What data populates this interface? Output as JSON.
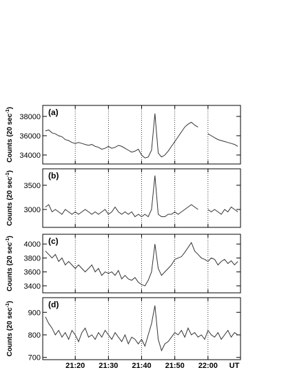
{
  "chart_data": [
    {
      "type": "line",
      "panel_label": "(a)",
      "ylabel": [
        "Counts (20 sec",
        "-1",
        ")"
      ],
      "x": [
        1271,
        1272,
        1273,
        1274,
        1275,
        1276,
        1277,
        1278,
        1279,
        1280,
        1281,
        1282,
        1283,
        1284,
        1285,
        1286,
        1287,
        1288,
        1289,
        1290,
        1291,
        1292,
        1293,
        1294,
        1295,
        1296,
        1297,
        1298,
        1299,
        1300,
        1301,
        1302,
        1303,
        1304,
        1305,
        1306,
        1307,
        1308,
        1309,
        1310,
        1311,
        1312,
        1313,
        1314,
        1315,
        1316,
        1317,
        1318,
        1319,
        1320,
        1321,
        1322,
        1323,
        1324,
        1325,
        1326,
        1327,
        1328,
        1329
      ],
      "values": [
        36500,
        36600,
        36300,
        36200,
        36000,
        35900,
        35600,
        35500,
        35300,
        35200,
        35300,
        35200,
        35100,
        35000,
        35100,
        34900,
        34800,
        34600,
        34700,
        34900,
        34700,
        34800,
        35000,
        34900,
        34700,
        34500,
        34300,
        34400,
        34600,
        34000,
        33700,
        33800,
        34500,
        38300,
        34200,
        33800,
        34000,
        34400,
        34900,
        35400,
        35900,
        36400,
        36900,
        37200,
        37400,
        37100,
        36900,
        null,
        null,
        36200,
        36000,
        35800,
        35600,
        35500,
        35400,
        35300,
        35200,
        35100,
        34900
      ],
      "color": "#333333",
      "xlim": [
        1270.2,
        1329.8
      ],
      "ylim": [
        33070,
        39140
      ],
      "yticks": [
        34000,
        36000,
        38000
      ],
      "xticks": [
        {
          "value": 1280,
          "label": "21:20"
        },
        {
          "value": 1290,
          "label": "21:30"
        },
        {
          "value": 1300,
          "label": "21:40"
        },
        {
          "value": 1310,
          "label": "21:50"
        },
        {
          "value": 1320,
          "label": "22:00"
        }
      ],
      "grid": true
    },
    {
      "type": "line",
      "panel_label": "(b)",
      "ylabel": [
        "Counts (20 sec",
        "-1",
        ")"
      ],
      "x": [
        1271,
        1272,
        1273,
        1274,
        1275,
        1276,
        1277,
        1278,
        1279,
        1280,
        1281,
        1282,
        1283,
        1284,
        1285,
        1286,
        1287,
        1288,
        1289,
        1290,
        1291,
        1292,
        1293,
        1294,
        1295,
        1296,
        1297,
        1298,
        1299,
        1300,
        1301,
        1302,
        1303,
        1304,
        1305,
        1306,
        1307,
        1308,
        1309,
        1310,
        1311,
        1312,
        1313,
        1314,
        1315,
        1316,
        1317,
        1318,
        1319,
        1320,
        1321,
        1322,
        1323,
        1324,
        1325,
        1326,
        1327,
        1328,
        1329
      ],
      "values": [
        3050,
        3100,
        2950,
        3000,
        2950,
        2900,
        3000,
        2950,
        2900,
        2950,
        2900,
        2950,
        3000,
        2950,
        2900,
        2950,
        2900,
        2950,
        3000,
        2900,
        2950,
        3050,
        2950,
        2900,
        2950,
        2900,
        2950,
        2850,
        2900,
        2850,
        2900,
        2850,
        3000,
        3700,
        2900,
        2850,
        2850,
        2900,
        2900,
        2950,
        2900,
        2950,
        3000,
        3050,
        3100,
        3050,
        3000,
        null,
        null,
        3000,
        2950,
        3000,
        2950,
        2900,
        3000,
        2950,
        3050,
        3000,
        2950
      ],
      "color": "#333333",
      "xlim": [
        1270.2,
        1329.8
      ],
      "ylim": [
        2630,
        3840
      ],
      "yticks": [
        3000,
        3500
      ],
      "xticks": [
        {
          "value": 1280,
          "label": "21:20"
        },
        {
          "value": 1290,
          "label": "21:30"
        },
        {
          "value": 1300,
          "label": "21:40"
        },
        {
          "value": 1310,
          "label": "21:50"
        },
        {
          "value": 1320,
          "label": "22:00"
        }
      ],
      "grid": true
    },
    {
      "type": "line",
      "panel_label": "(c)",
      "ylabel": [
        "Counts (20 sec",
        "-1",
        ")"
      ],
      "x": [
        1271,
        1272,
        1273,
        1274,
        1275,
        1276,
        1277,
        1278,
        1279,
        1280,
        1281,
        1282,
        1283,
        1284,
        1285,
        1286,
        1287,
        1288,
        1289,
        1290,
        1291,
        1292,
        1293,
        1294,
        1295,
        1296,
        1297,
        1298,
        1299,
        1300,
        1301,
        1302,
        1303,
        1304,
        1305,
        1306,
        1307,
        1308,
        1309,
        1310,
        1311,
        1312,
        1313,
        1314,
        1315,
        1316,
        1317,
        1318,
        1319,
        1320,
        1321,
        1322,
        1323,
        1324,
        1325,
        1326,
        1327,
        1328,
        1329
      ],
      "values": [
        3900,
        3850,
        3800,
        3850,
        3750,
        3800,
        3700,
        3750,
        3700,
        3650,
        3700,
        3650,
        3600,
        3650,
        3700,
        3600,
        3650,
        3550,
        3600,
        3580,
        3600,
        3550,
        3620,
        3500,
        3550,
        3500,
        3480,
        3520,
        3450,
        3420,
        3400,
        3480,
        3600,
        4000,
        3650,
        3550,
        3600,
        3650,
        3700,
        3780,
        3800,
        3820,
        3880,
        3950,
        4020,
        3900,
        3850,
        3800,
        3780,
        3750,
        3800,
        3780,
        3700,
        3750,
        3780,
        3720,
        3760,
        3700,
        3750
      ],
      "color": "#333333",
      "xlim": [
        1270.2,
        1329.8
      ],
      "ylim": [
        3300,
        4140
      ],
      "yticks": [
        3400,
        3600,
        3800,
        4000
      ],
      "xticks": [
        {
          "value": 1280,
          "label": "21:20"
        },
        {
          "value": 1290,
          "label": "21:30"
        },
        {
          "value": 1300,
          "label": "21:40"
        },
        {
          "value": 1310,
          "label": "21:50"
        },
        {
          "value": 1320,
          "label": "22:00"
        }
      ],
      "grid": true
    },
    {
      "type": "line",
      "panel_label": "(d)",
      "ylabel": [
        "Counts (20 sec",
        "-1",
        ")"
      ],
      "xlabel": "UT",
      "x": [
        1271,
        1272,
        1273,
        1274,
        1275,
        1276,
        1277,
        1278,
        1279,
        1280,
        1281,
        1282,
        1283,
        1284,
        1285,
        1286,
        1287,
        1288,
        1289,
        1290,
        1291,
        1292,
        1293,
        1294,
        1295,
        1296,
        1297,
        1298,
        1299,
        1300,
        1301,
        1302,
        1303,
        1304,
        1305,
        1306,
        1307,
        1308,
        1309,
        1310,
        1311,
        1312,
        1313,
        1314,
        1315,
        1316,
        1317,
        1318,
        1319,
        1320,
        1321,
        1322,
        1323,
        1324,
        1325,
        1326,
        1327,
        1328,
        1329
      ],
      "values": [
        880,
        850,
        830,
        800,
        820,
        790,
        810,
        780,
        820,
        800,
        770,
        810,
        830,
        790,
        800,
        780,
        810,
        790,
        820,
        800,
        780,
        810,
        790,
        770,
        800,
        760,
        790,
        780,
        760,
        780,
        750,
        800,
        850,
        930,
        780,
        730,
        760,
        770,
        790,
        810,
        800,
        820,
        790,
        830,
        800,
        810,
        790,
        800,
        780,
        820,
        800,
        790,
        810,
        780,
        800,
        820,
        790,
        810,
        800
      ],
      "color": "#333333",
      "xlim": [
        1270.2,
        1329.8
      ],
      "ylim": [
        690,
        965
      ],
      "yticks": [
        700,
        800,
        900
      ],
      "xticks": [
        {
          "value": 1280,
          "label": "21:20"
        },
        {
          "value": 1290,
          "label": "21:30"
        },
        {
          "value": 1300,
          "label": "21:40"
        },
        {
          "value": 1310,
          "label": "21:50"
        },
        {
          "value": 1320,
          "label": "22:00"
        }
      ],
      "grid": true
    }
  ]
}
